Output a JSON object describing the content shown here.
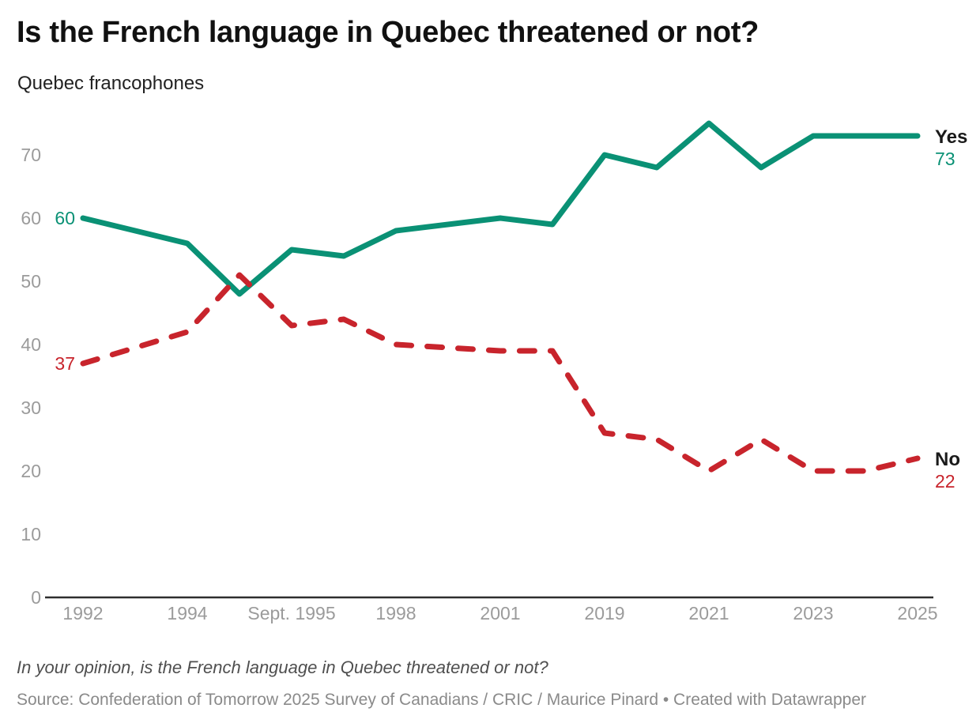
{
  "footer": {
    "note": "In your opinion, is the French language in Quebec threatened or not?",
    "source": "Source: Confederation of Tomorrow 2025 Survey of Canadians / CRIC / Maurice Pinard • Created with Datawrapper"
  },
  "chart_data": {
    "type": "line",
    "title": "Is the French language in Quebec threatened or not?",
    "subtitle": "Quebec francophones",
    "grid": false,
    "legend": "direct-end-labels",
    "x_axis": {
      "slot_count": 17,
      "tick_labels": [
        {
          "label": "1992",
          "slot": 0
        },
        {
          "label": "1994",
          "slot": 2
        },
        {
          "label": "Sept. 1995",
          "slot": 4
        },
        {
          "label": "1998",
          "slot": 6
        },
        {
          "label": "2001",
          "slot": 8
        },
        {
          "label": "2019",
          "slot": 10
        },
        {
          "label": "2021",
          "slot": 12
        },
        {
          "label": "2023",
          "slot": 14
        },
        {
          "label": "2025",
          "slot": 16
        }
      ]
    },
    "y_axis": {
      "ticks": [
        0,
        10,
        20,
        30,
        40,
        50,
        60,
        70
      ],
      "range": [
        0,
        78
      ]
    },
    "series": [
      {
        "name": "Yes",
        "color": "#0a9175",
        "line_style": "solid",
        "first_value_label": "60",
        "last_value_label": "73",
        "points": [
          {
            "slot": 0,
            "value": 60
          },
          {
            "slot": 2,
            "value": 56
          },
          {
            "slot": 3,
            "value": 48
          },
          {
            "slot": 4,
            "value": 55
          },
          {
            "slot": 5,
            "value": 54
          },
          {
            "slot": 6,
            "value": 58
          },
          {
            "slot": 8,
            "value": 60
          },
          {
            "slot": 9,
            "value": 59
          },
          {
            "slot": 10,
            "value": 70
          },
          {
            "slot": 11,
            "value": 68
          },
          {
            "slot": 12,
            "value": 75
          },
          {
            "slot": 13,
            "value": 68
          },
          {
            "slot": 14,
            "value": 73
          },
          {
            "slot": 15,
            "value": 73
          },
          {
            "slot": 16,
            "value": 73
          }
        ]
      },
      {
        "name": "No",
        "color": "#c8242c",
        "line_style": "dashed",
        "first_value_label": "37",
        "last_value_label": "22",
        "points": [
          {
            "slot": 0,
            "value": 37
          },
          {
            "slot": 2,
            "value": 42
          },
          {
            "slot": 3,
            "value": 51
          },
          {
            "slot": 4,
            "value": 43
          },
          {
            "slot": 5,
            "value": 44
          },
          {
            "slot": 6,
            "value": 40
          },
          {
            "slot": 8,
            "value": 39
          },
          {
            "slot": 9,
            "value": 39
          },
          {
            "slot": 10,
            "value": 26
          },
          {
            "slot": 11,
            "value": 25
          },
          {
            "slot": 12,
            "value": 20
          },
          {
            "slot": 13,
            "value": 25
          },
          {
            "slot": 14,
            "value": 20
          },
          {
            "slot": 15,
            "value": 20
          },
          {
            "slot": 16,
            "value": 22
          }
        ]
      }
    ]
  }
}
